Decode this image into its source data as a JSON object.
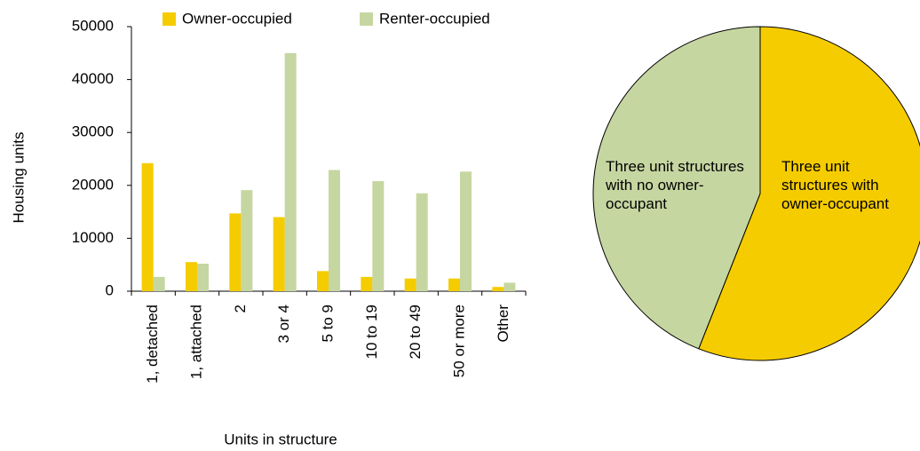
{
  "chart_data": [
    {
      "type": "bar",
      "categories": [
        "1, detached",
        "1, attached",
        "2",
        "3 or 4",
        "5 to 9",
        "10 to 19",
        "20 to 49",
        "50 or more",
        "Other"
      ],
      "series": [
        {
          "name": "Owner-occupied",
          "color": "#f5cc00",
          "values": [
            24200,
            5500,
            14700,
            14000,
            3800,
            2700,
            2400,
            2400,
            800
          ]
        },
        {
          "name": "Renter-occupied",
          "color": "#c6d6a1",
          "values": [
            2700,
            5200,
            19100,
            45000,
            22900,
            20800,
            18500,
            22600,
            1600
          ]
        }
      ],
      "x_label": "Units in structure",
      "y_label": "Housing units",
      "ylim": [
        0,
        50000
      ],
      "yticks": [
        0,
        10000,
        20000,
        30000,
        40000,
        50000
      ],
      "legend": "top"
    },
    {
      "type": "pie",
      "categories": [
        "Three unit structures with owner-occupant",
        "Three unit structures with no owner-occupant"
      ],
      "values": [
        56,
        44
      ],
      "colors": [
        "#f5cc00",
        "#c6d6a1"
      ]
    }
  ]
}
